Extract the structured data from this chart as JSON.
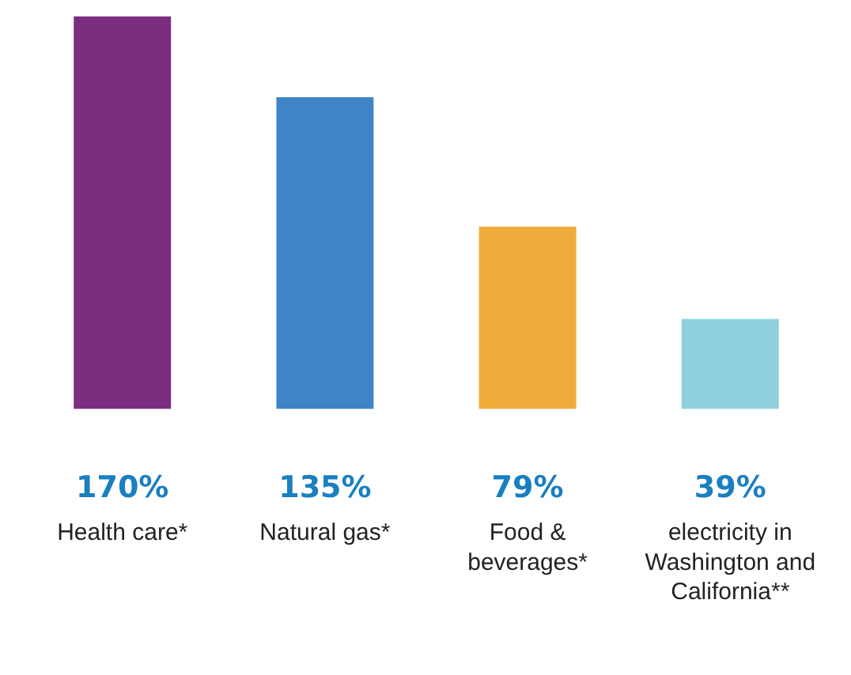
{
  "chart_data": {
    "type": "bar",
    "categories": [
      "Health care*",
      "Natural gas*",
      "Food & beverages*",
      "electricity in Washington and California**"
    ],
    "values": [
      170,
      135,
      79,
      39
    ],
    "value_labels": [
      "170%",
      "135%",
      "79%",
      "39%"
    ],
    "colors": [
      "#7b2d80",
      "#3f84c6",
      "#f0ac3a",
      "#8ed0de"
    ],
    "grid": false
  }
}
